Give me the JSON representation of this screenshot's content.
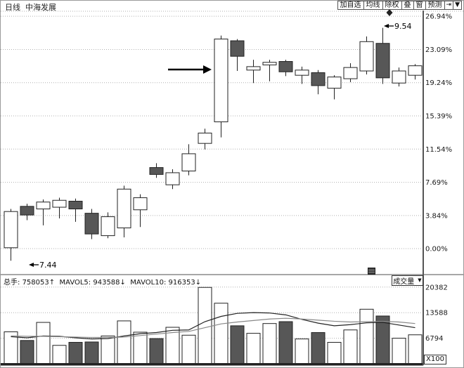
{
  "window": {
    "title": "日线  中海发展"
  },
  "toolbar": {
    "buttons": [
      "加自选",
      "均线",
      "除权",
      "叠",
      "窗",
      "预测"
    ],
    "icon_buttons": [
      {
        "name": "skip-to-end-icon",
        "glyph": "⇥"
      },
      {
        "name": "chevron-down-icon",
        "glyph": "▼"
      }
    ]
  },
  "colors": {
    "background": "#ffffff",
    "axis": "#555555",
    "grid": "#b0b0b0",
    "candle_up_fill": "#ffffff",
    "candle_down_fill": "#575757",
    "candle_stroke": "#222222",
    "mavol5_line": "#222222",
    "mavol10_line": "#888888",
    "baseline": "#222222"
  },
  "volume_header": {
    "zongshou_label": "总手:",
    "zongshou_value": "758053",
    "zongshou_dir": "↑",
    "mavol5_label": "MAVOL5:",
    "mavol5_value": "943588",
    "mavol5_dir": "↓",
    "mavol10_label": "MAVOL10:",
    "mavol10_value": "916353",
    "mavol10_dir": "↓"
  },
  "volume_pane": {
    "dropdown_label": "成交量",
    "dropdown_arrow": "▼",
    "unit_label": "X100"
  },
  "chart_data": [
    {
      "type": "candlestick",
      "title": "中海发展 日线 (daily candlestick, % change scale)",
      "legend_position": "none",
      "grid": "dotted-horizontal",
      "y_axis": {
        "unit": "%",
        "ticks": [
          "26.94%",
          "23.09%",
          "19.24%",
          "15.39%",
          "11.54%",
          "7.69%",
          "3.84%",
          "0.00%"
        ],
        "tick_values": [
          26.94,
          23.09,
          19.24,
          15.39,
          11.54,
          7.69,
          3.84,
          0.0
        ],
        "range": [
          -2.6,
          27.6
        ]
      },
      "candles": [
        {
          "o": 0.1,
          "c": 4.3,
          "h": 4.6,
          "l": -1.4
        },
        {
          "o": 4.9,
          "c": 3.9,
          "h": 5.2,
          "l": 3.3
        },
        {
          "o": 4.6,
          "c": 5.4,
          "h": 5.7,
          "l": 2.7
        },
        {
          "o": 4.8,
          "c": 5.6,
          "h": 5.9,
          "l": 3.5
        },
        {
          "o": 5.5,
          "c": 4.6,
          "h": 5.8,
          "l": 3.1
        },
        {
          "o": 4.1,
          "c": 1.7,
          "h": 4.6,
          "l": 1.1
        },
        {
          "o": 1.5,
          "c": 3.7,
          "h": 4.2,
          "l": 1.2
        },
        {
          "o": 2.4,
          "c": 6.9,
          "h": 7.3,
          "l": 1.3
        },
        {
          "o": 4.5,
          "c": 5.9,
          "h": 6.3,
          "l": 2.5
        },
        {
          "o": 9.4,
          "c": 8.6,
          "h": 9.9,
          "l": 8.2
        },
        {
          "o": 7.4,
          "c": 8.8,
          "h": 9.2,
          "l": 6.9
        },
        {
          "o": 9.0,
          "c": 11.0,
          "h": 12.1,
          "l": 8.5
        },
        {
          "o": 12.2,
          "c": 13.4,
          "h": 13.9,
          "l": 11.5
        },
        {
          "o": 14.7,
          "c": 24.3,
          "h": 24.7,
          "l": 12.9
        },
        {
          "o": 24.1,
          "c": 22.3,
          "h": 24.3,
          "l": 20.6
        },
        {
          "o": 20.7,
          "c": 21.1,
          "h": 21.9,
          "l": 19.2
        },
        {
          "o": 21.3,
          "c": 21.6,
          "h": 21.9,
          "l": 19.4
        },
        {
          "o": 21.7,
          "c": 20.5,
          "h": 21.9,
          "l": 20.0
        },
        {
          "o": 20.1,
          "c": 20.7,
          "h": 21.1,
          "l": 19.1
        },
        {
          "o": 20.4,
          "c": 18.9,
          "h": 20.7,
          "l": 17.9
        },
        {
          "o": 18.6,
          "c": 19.9,
          "h": 20.1,
          "l": 17.3
        },
        {
          "o": 19.7,
          "c": 21.0,
          "h": 21.5,
          "l": 19.3
        },
        {
          "o": 20.6,
          "c": 24.0,
          "h": 24.6,
          "l": 20.2
        },
        {
          "o": 23.8,
          "c": 19.8,
          "h": 25.6,
          "l": 19.1
        },
        {
          "o": 19.2,
          "c": 20.6,
          "h": 21.0,
          "l": 18.8
        },
        {
          "o": 20.1,
          "c": 21.2,
          "h": 21.4,
          "l": 19.6
        }
      ],
      "annotations": {
        "low_price_label": "7.44",
        "low_arrow": "←",
        "high_price_label": "9.54",
        "high_arrow": "←",
        "big_arrow_target_candle_index": 13,
        "diamond_marker": "◆"
      }
    },
    {
      "type": "bar",
      "title": "成交量 (volume)",
      "unit_label": "X100",
      "y_axis": {
        "ticks": [
          "20382",
          "13588",
          "6794"
        ],
        "tick_values": [
          20382,
          13588,
          6794
        ],
        "range": [
          0,
          21000
        ]
      },
      "values": [
        8500,
        6200,
        11000,
        4900,
        5700,
        5800,
        7400,
        11400,
        8400,
        6700,
        9700,
        7600,
        20300,
        16100,
        10100,
        8100,
        10700,
        11200,
        6600,
        8300,
        5700,
        9000,
        14500,
        12700,
        6800,
        7700
      ],
      "series": [
        {
          "name": "MAVOL5",
          "values": [
            7200,
            6900,
            7400,
            7300,
            6900,
            6600,
            6700,
            7400,
            8000,
            8300,
            8900,
            9000,
            11200,
            12600,
            13400,
            13600,
            13500,
            13000,
            11800,
            10800,
            10100,
            10400,
            10900,
            11000,
            10300,
            9600
          ]
        },
        {
          "name": "MAVOL10",
          "values": [
            7400,
            7300,
            7300,
            7200,
            7100,
            7000,
            7000,
            7100,
            7500,
            7900,
            8300,
            8600,
            9600,
            10600,
            11100,
            11500,
            11900,
            12100,
            11900,
            11600,
            11300,
            11100,
            11200,
            11300,
            11100,
            10700
          ]
        }
      ]
    }
  ]
}
